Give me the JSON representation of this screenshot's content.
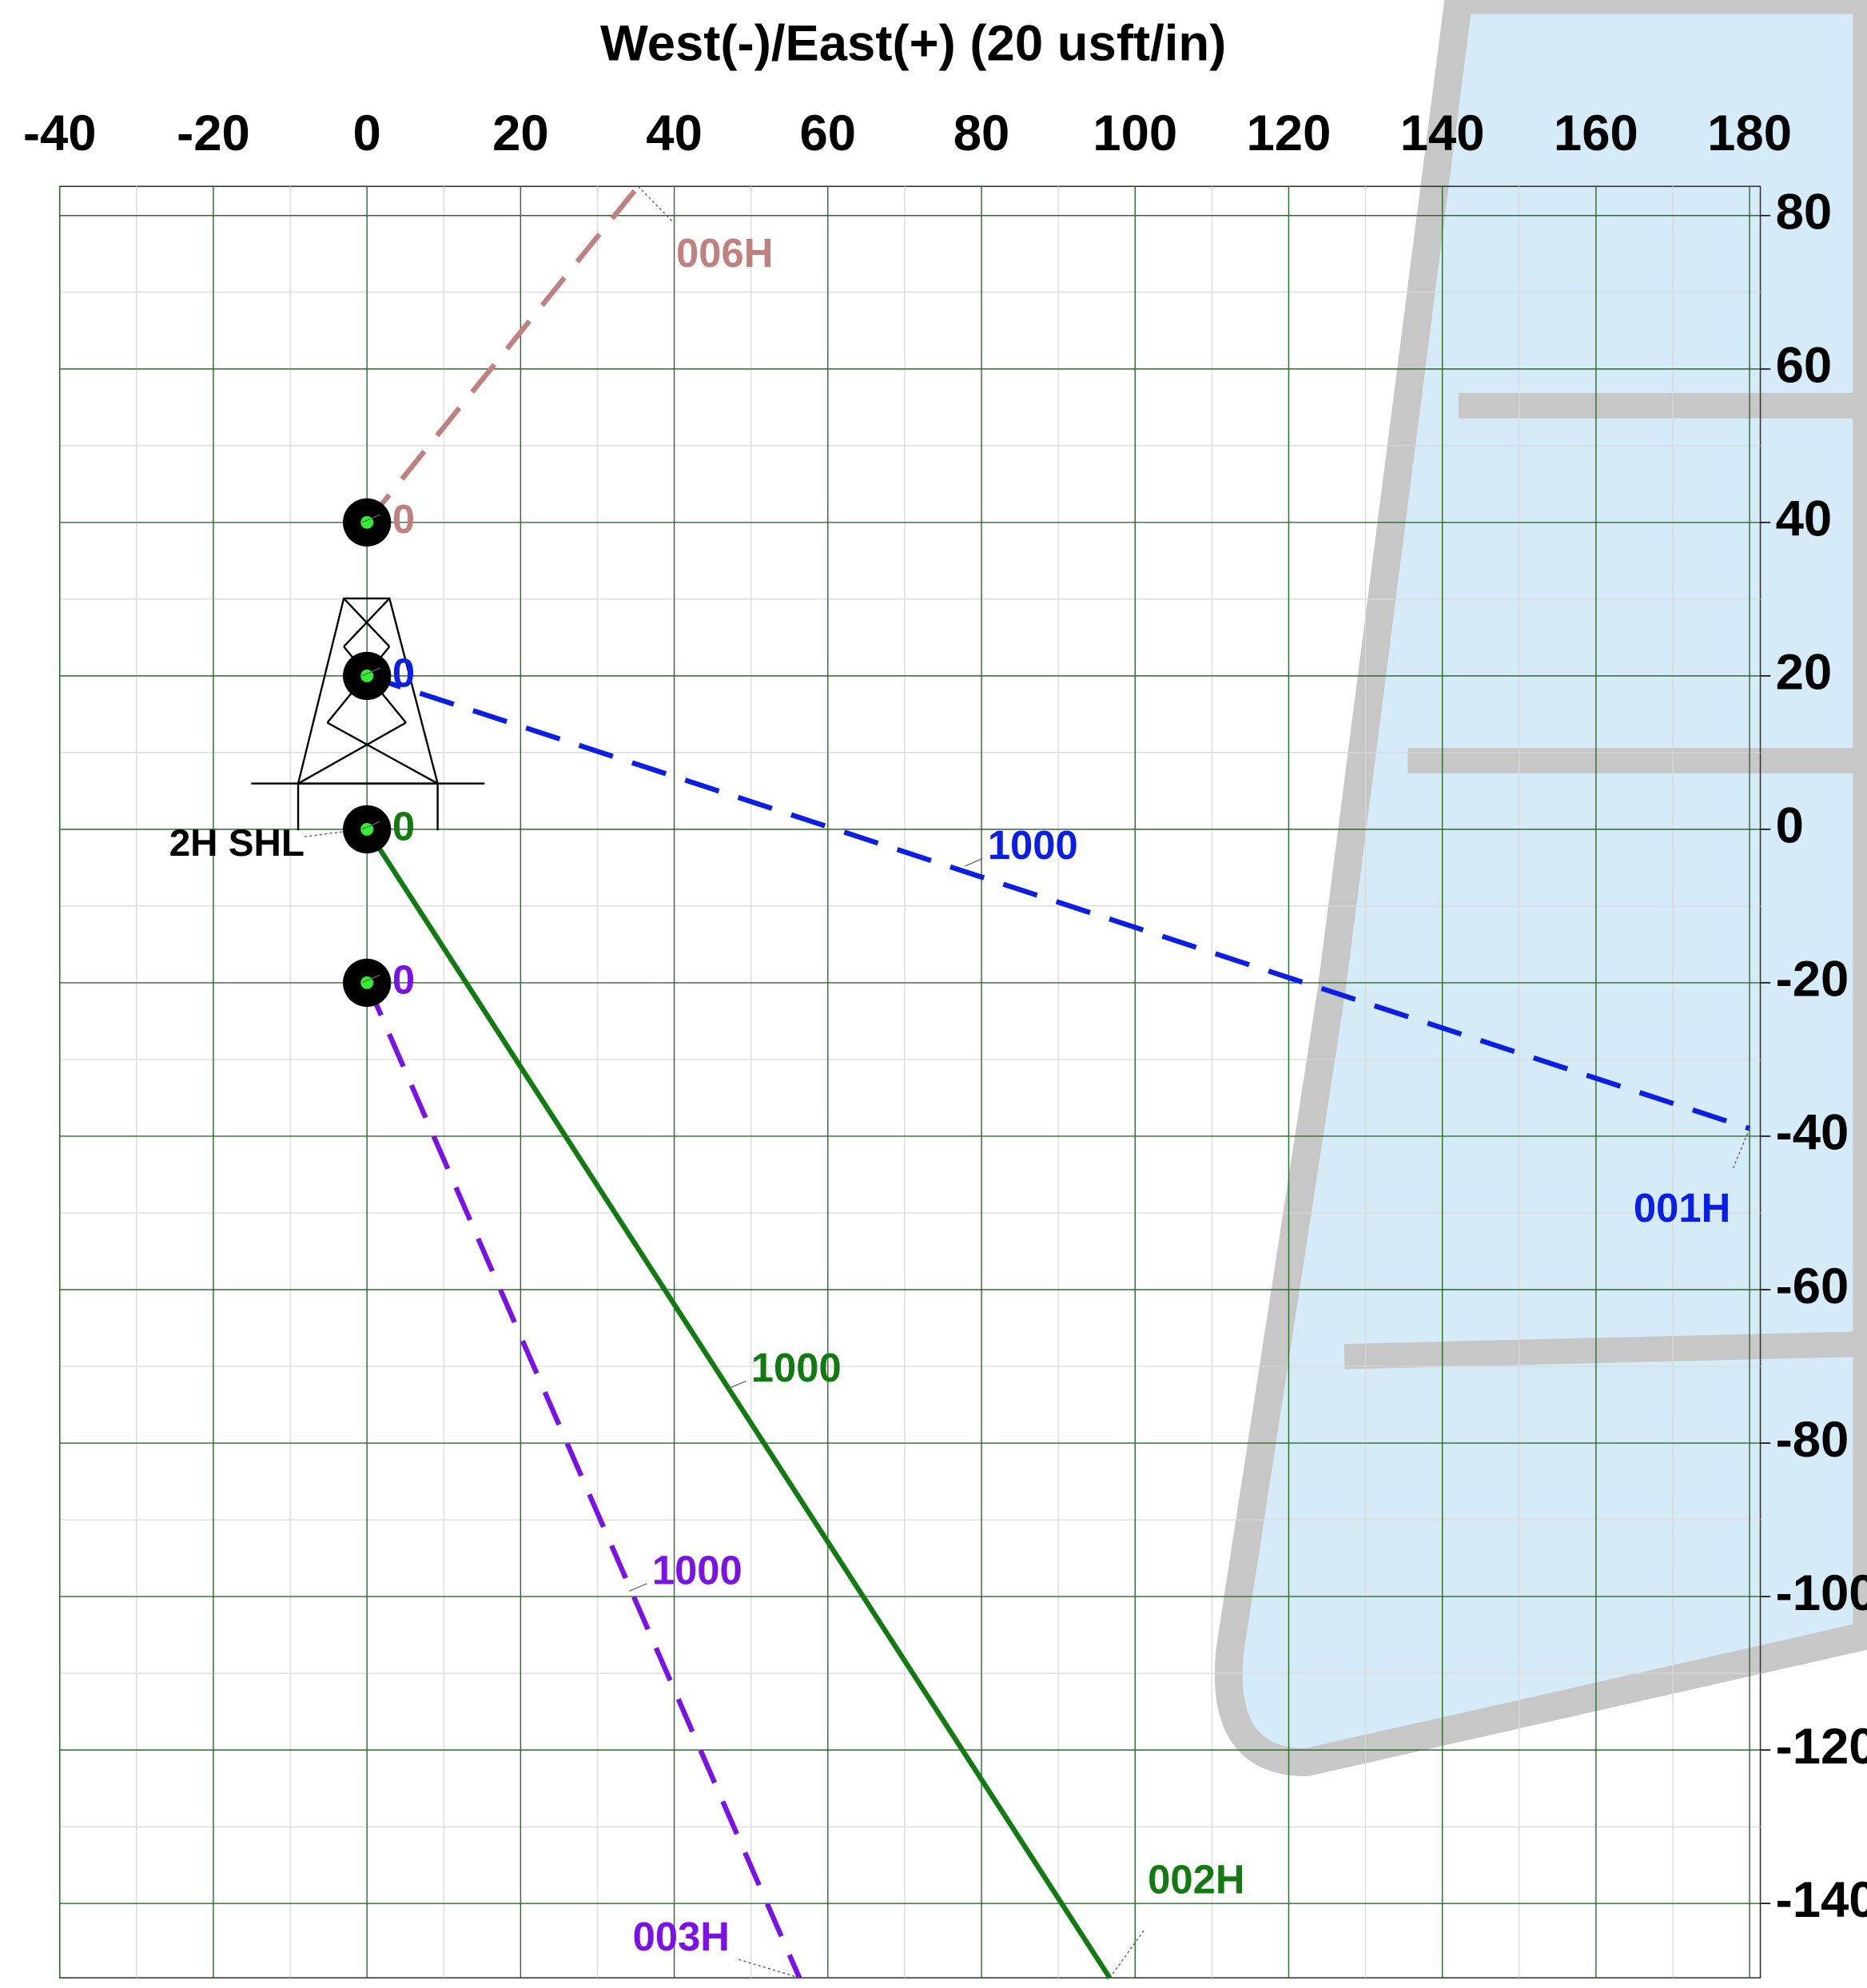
{
  "chart_data": {
    "type": "plan",
    "title": "West(-)/East(+) (20 usft/in)",
    "xlim": [
      -40,
      181.4
    ],
    "ylim": [
      -149.7,
      83.8
    ],
    "xticks": [
      -40,
      -20,
      0,
      20,
      40,
      60,
      80,
      100,
      120,
      140,
      160,
      180
    ],
    "yticks": [
      80,
      60,
      40,
      20,
      0,
      -20,
      -40,
      -60,
      -80,
      -100,
      -120,
      -140
    ],
    "minor_xticks": [
      -30,
      -10,
      10,
      30,
      50,
      70,
      90,
      110,
      130,
      150,
      170
    ],
    "minor_yticks": [
      70,
      50,
      30,
      10,
      -10,
      -30,
      -50,
      -70,
      -90,
      -110,
      -130
    ],
    "grid": true,
    "grid_color": "#2e6b2e",
    "shl_label": "2H SHL",
    "series": [
      {
        "name": "006H",
        "color": "#c08080",
        "dashed": true,
        "x": [
          0,
          35.3
        ],
        "y": [
          40,
          83.8
        ],
        "md_marks": [
          {
            "md": 0,
            "x": 0,
            "y": 40
          }
        ]
      },
      {
        "name": "001H",
        "color": "#0a1ee6",
        "dashed": true,
        "x": [
          0,
          180
        ],
        "y": [
          20,
          -39
        ],
        "md_marks": [
          {
            "md": 0,
            "x": 0,
            "y": 20
          },
          {
            "md": 1000,
            "x": 78.5,
            "y": -4.8
          }
        ]
      },
      {
        "name": "002H",
        "color": "#117a11",
        "dashed": false,
        "x": [
          0,
          96.7
        ],
        "y": [
          0,
          -149.7
        ],
        "md_marks": [
          {
            "md": 0,
            "x": 0,
            "y": 0
          },
          {
            "md": 1000,
            "x": 47.7,
            "y": -72.9
          }
        ]
      },
      {
        "name": "003H",
        "color": "#7a12e6",
        "dashed": true,
        "x": [
          0,
          56.3
        ],
        "y": [
          -20,
          -149.7
        ],
        "md_marks": [
          {
            "md": 0,
            "x": 0,
            "y": -20
          },
          {
            "md": 1000,
            "x": 34.8,
            "y": -99.3
          }
        ]
      }
    ]
  }
}
